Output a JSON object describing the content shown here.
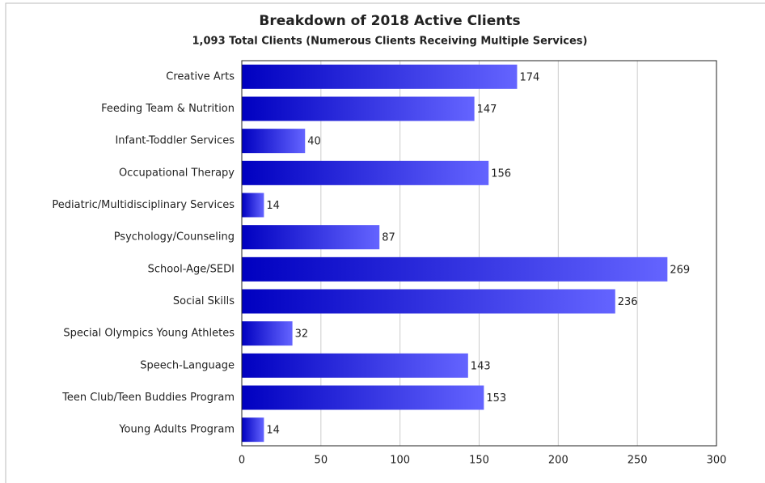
{
  "chart_data": {
    "type": "bar",
    "orientation": "horizontal",
    "title": "Breakdown of 2018 Active Clients",
    "subtitle": "1,093 Total Clients (Numerous Clients Receiving Multiple Services)",
    "categories": [
      "Creative Arts",
      "Feeding Team & Nutrition",
      "Infant-Toddler Services",
      "Occupational Therapy",
      "Pediatric/Multidisciplinary Services",
      "Psychology/Counseling",
      "School-Age/SEDI",
      "Social Skills",
      "Special Olympics Young Athletes",
      "Speech-Language",
      "Teen Club/Teen Buddies Program",
      "Young Adults Program"
    ],
    "values": [
      174,
      147,
      40,
      156,
      14,
      87,
      269,
      236,
      32,
      143,
      153,
      14
    ],
    "gradient": [
      "#0000c0",
      "#6464ff"
    ],
    "xlim": [
      0,
      300
    ],
    "xticks": [
      0,
      50,
      100,
      150,
      200,
      250,
      300
    ],
    "grid": true
  }
}
